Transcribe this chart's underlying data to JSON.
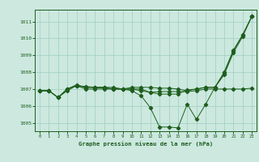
{
  "x": [
    0,
    1,
    2,
    3,
    4,
    5,
    6,
    7,
    8,
    9,
    10,
    11,
    12,
    13,
    14,
    15,
    16,
    17,
    18,
    19,
    20,
    21,
    22,
    23
  ],
  "line1": [
    1006.9,
    1006.9,
    1006.5,
    1006.9,
    1007.2,
    1007.0,
    1007.0,
    1007.0,
    1007.0,
    1007.0,
    1007.0,
    1006.9,
    1006.8,
    1006.85,
    1006.85,
    1006.85,
    1006.85,
    1006.9,
    1007.0,
    1007.0,
    1007.0,
    1007.0,
    1007.0,
    1007.05
  ],
  "line2": [
    1006.9,
    1006.9,
    1006.5,
    1007.0,
    1007.2,
    1007.1,
    1007.1,
    1007.1,
    1007.1,
    1007.0,
    1006.9,
    1006.6,
    1005.9,
    1004.75,
    1004.75,
    1004.7,
    1006.1,
    1005.2,
    1006.1,
    1007.1,
    1008.0,
    1009.3,
    1010.2,
    1011.3
  ],
  "line3": [
    1006.9,
    1006.9,
    1006.5,
    1007.0,
    1007.2,
    1007.15,
    1007.1,
    1007.1,
    1007.0,
    1007.0,
    1007.0,
    1007.0,
    1006.8,
    1006.7,
    1006.7,
    1006.7,
    1006.95,
    1007.0,
    1007.1,
    1007.1,
    1007.9,
    1009.25,
    1010.2,
    1011.3
  ],
  "line4": [
    1006.9,
    1006.9,
    1006.5,
    1007.0,
    1007.25,
    1007.1,
    1007.1,
    1007.05,
    1007.0,
    1007.0,
    1007.1,
    1007.1,
    1007.1,
    1007.05,
    1007.05,
    1007.0,
    1006.9,
    1007.0,
    1007.1,
    1007.1,
    1007.85,
    1009.15,
    1010.1,
    1011.3
  ],
  "bg_color": "#cce8df",
  "line_color": "#1e5e1e",
  "grid_color": "#9ecfbf",
  "xlabel": "Graphe pression niveau de la mer (hPa)",
  "ylim": [
    1004.5,
    1011.7
  ],
  "xlim": [
    -0.5,
    23.5
  ],
  "yticks": [
    1005,
    1006,
    1007,
    1008,
    1009,
    1010,
    1011
  ],
  "xticks": [
    0,
    1,
    2,
    3,
    4,
    5,
    6,
    7,
    8,
    9,
    10,
    11,
    12,
    13,
    14,
    15,
    16,
    17,
    18,
    19,
    20,
    21,
    22,
    23
  ]
}
